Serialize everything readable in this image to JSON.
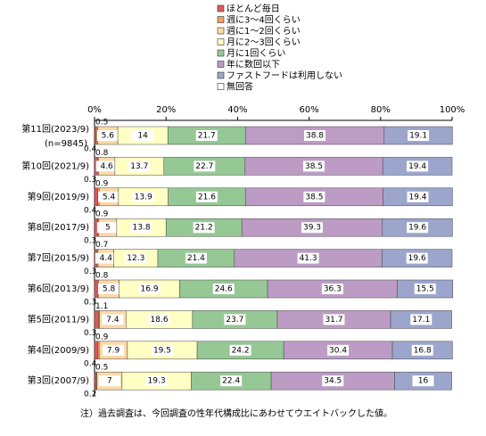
{
  "chart_data": {
    "type": "stacked-bar-horizontal",
    "categories": [
      "第11回(2023/9)",
      "第10回(2021/9)",
      "第9回(2019/9)",
      "第8回(2017/9)",
      "第7回(2015/9)",
      "第6回(2013/9)",
      "第5回(2011/9)",
      "第4回(2009/9)",
      "第3回(2007/9)"
    ],
    "n_label": "(n=9845)",
    "xlim": [
      0,
      100
    ],
    "xticks": [
      {
        "value": 0,
        "label": "0%"
      },
      {
        "value": 20,
        "label": "20%"
      },
      {
        "value": 40,
        "label": "40%"
      },
      {
        "value": 60,
        "label": "60%"
      },
      {
        "value": 80,
        "label": "80%"
      },
      {
        "value": 100,
        "label": "100%"
      }
    ],
    "series": [
      {
        "name": "ほとんど毎日",
        "color": "#e0575a",
        "values": [
          0.5,
          0.8,
          0.9,
          0.9,
          0.7,
          0.8,
          1.1,
          0.9,
          0.5
        ]
      },
      {
        "name": "週に3～4回くらい",
        "color": "#f0a060",
        "values": [
          0.4,
          0.3,
          0.4,
          0.3,
          0.3,
          0.3,
          0.3,
          0.4,
          0.2
        ]
      },
      {
        "name": "週に1～2回くらい",
        "color": "#fcd9a8",
        "values": [
          5.6,
          4.6,
          5.4,
          5.0,
          4.4,
          5.8,
          7.4,
          7.9,
          7.0
        ]
      },
      {
        "name": "月に2～3回くらい",
        "color": "#ffffc4",
        "values": [
          14.0,
          13.7,
          13.9,
          13.8,
          12.3,
          16.9,
          18.6,
          19.5,
          19.3
        ]
      },
      {
        "name": "月に1回くらい",
        "color": "#96c896",
        "values": [
          21.7,
          22.7,
          21.6,
          21.2,
          21.4,
          24.6,
          23.7,
          24.2,
          22.4
        ]
      },
      {
        "name": "年に数回以下",
        "color": "#bc9cc4",
        "values": [
          38.8,
          38.5,
          38.5,
          39.3,
          41.3,
          36.3,
          31.7,
          30.4,
          34.5
        ]
      },
      {
        "name": "ファストフードは利用しない",
        "color": "#9ca6cc",
        "values": [
          19.1,
          19.4,
          19.4,
          19.6,
          19.6,
          15.5,
          17.1,
          16.8,
          16.0
        ]
      },
      {
        "name": "無回答",
        "color": "#ffffff",
        "values": [
          0,
          0,
          0,
          0,
          0,
          0,
          0,
          0,
          0
        ]
      }
    ],
    "footnote": "注）過去調査は、今回調査の性年代構成比にあわせてウエイトバックした値。"
  }
}
